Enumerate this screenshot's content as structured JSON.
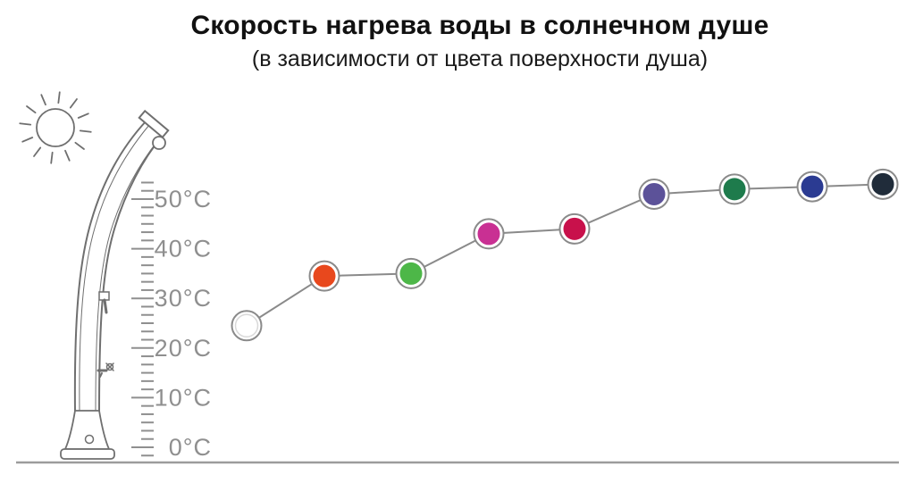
{
  "header": {
    "title": "Скорость нагрева воды в солнечном душе",
    "subtitle": "(в зависимости от цвета поверхности душа)"
  },
  "thermometer": {
    "unit": "°C",
    "labels": [
      "0°C",
      "10°C",
      "20°C",
      "30°C",
      "40°C",
      "50°C"
    ]
  },
  "decorations": {
    "sun_icon": "sun",
    "shower_illustration": "solar-shower",
    "ground_line_color": "#9c9c9c",
    "scale_color": "#8f8f8f"
  },
  "chart_data": {
    "type": "line",
    "title": "Скорость нагрева воды в солнечном душе",
    "subtitle": "(в зависимости от цвета поверхности душа)",
    "y_axis": {
      "tick_labels": [
        "0°C",
        "10°C",
        "20°C",
        "30°C",
        "40°C",
        "50°C"
      ],
      "min": 0,
      "max": 55,
      "grid": false
    },
    "legend": "none",
    "marker_style": {
      "ring_color": "#8a8a8a",
      "connector_color": "#8a8a8a",
      "white_marker_edge": "#d9d9d9"
    },
    "points": [
      {
        "surface_color": "white",
        "color_hex": "#ffffff",
        "temperature_c": 24.5
      },
      {
        "surface_color": "orange-red",
        "color_hex": "#e8481d",
        "temperature_c": 34.5
      },
      {
        "surface_color": "green",
        "color_hex": "#4db748",
        "temperature_c": 35
      },
      {
        "surface_color": "magenta-pink",
        "color_hex": "#c93093",
        "temperature_c": 43
      },
      {
        "surface_color": "crimson",
        "color_hex": "#c8114b",
        "temperature_c": 44
      },
      {
        "surface_color": "purple",
        "color_hex": "#5c5299",
        "temperature_c": 51
      },
      {
        "surface_color": "dark-green",
        "color_hex": "#1e7b4c",
        "temperature_c": 52
      },
      {
        "surface_color": "royal-blue",
        "color_hex": "#2b3b92",
        "temperature_c": 52.5
      },
      {
        "surface_color": "dark-navy",
        "color_hex": "#202c3a",
        "temperature_c": 53
      }
    ]
  }
}
